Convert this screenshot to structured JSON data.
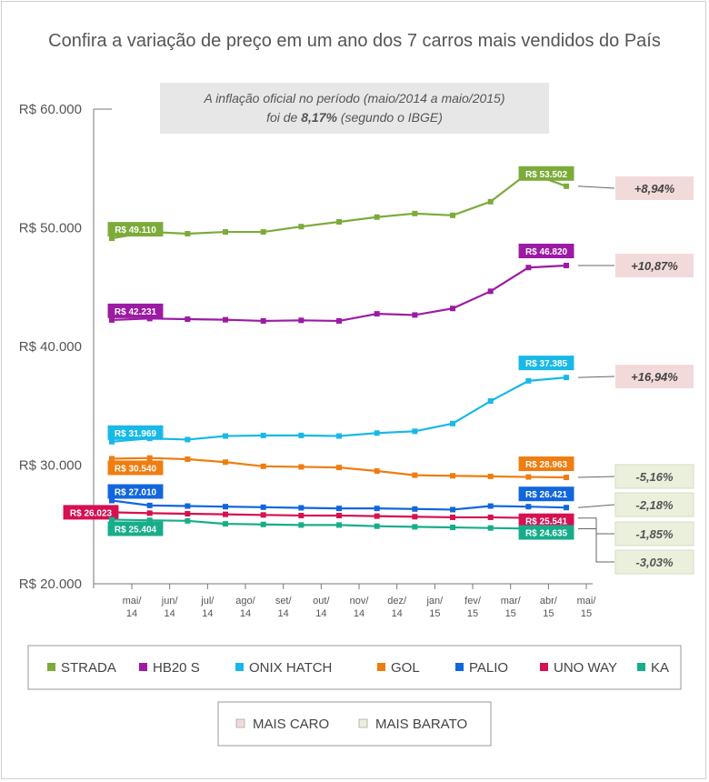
{
  "title": "Confira a variação de preço em um ano dos 7 carros mais vendidos do País",
  "note": {
    "line1": "A inflação oficial no período (maio/2014 a maio/2015)",
    "line2_pre": "foi de ",
    "line2_bold": "8,17%",
    "line2_post": " (segundo o IBGE)"
  },
  "colors": {
    "mais_caro": "#f3dada",
    "mais_barato": "#eaf0dc",
    "axis": "#777777"
  },
  "chart_data": {
    "type": "line",
    "title": "Confira a variação de preço em um ano dos 7 carros mais vendidos do País",
    "x": [
      "mai/14",
      "jun/14",
      "jul/14",
      "ago/14",
      "set/14",
      "out/14",
      "nov/14",
      "dez/14",
      "jan/15",
      "fev/15",
      "mar/15",
      "abr/15",
      "mai/15"
    ],
    "x_labels": [
      [
        "mai/",
        "14"
      ],
      [
        "jun/",
        "14"
      ],
      [
        "jul/",
        "14"
      ],
      [
        "ago/",
        "14"
      ],
      [
        "set/",
        "14"
      ],
      [
        "out/",
        "14"
      ],
      [
        "nov/",
        "14"
      ],
      [
        "dez/",
        "14"
      ],
      [
        "jan/",
        "15"
      ],
      [
        "fev/",
        "15"
      ],
      [
        "mar/",
        "15"
      ],
      [
        "abr/",
        "15"
      ],
      [
        "mai/",
        "15"
      ]
    ],
    "ylim": [
      20000,
      60000
    ],
    "yticks": [
      20000,
      30000,
      40000,
      50000,
      60000
    ],
    "ytick_labels": [
      "R$ 20.000",
      "R$ 30.000",
      "R$ 40.000",
      "R$ 50.000",
      "R$ 60.000"
    ],
    "series": [
      {
        "name": "STRADA",
        "color": "#7cab3a",
        "values": [
          49110,
          49650,
          49500,
          49650,
          49650,
          50100,
          50500,
          50900,
          51200,
          51050,
          52200,
          54650,
          53502
        ],
        "start_label": "R$ 49.110",
        "end_label": "R$ 53.502",
        "change": "+8,94%",
        "category": "mais_caro"
      },
      {
        "name": "HB20 S",
        "color": "#9c1aa4",
        "values": [
          42231,
          42350,
          42300,
          42250,
          42150,
          42200,
          42150,
          42750,
          42650,
          43200,
          44650,
          46650,
          46820
        ],
        "start_label": "R$ 42.231",
        "end_label": "R$ 46.820",
        "change": "+10,87%",
        "category": "mais_caro"
      },
      {
        "name": "ONIX HATCH",
        "color": "#18b9e8",
        "values": [
          31969,
          32250,
          32150,
          32450,
          32500,
          32500,
          32450,
          32700,
          32850,
          33500,
          35400,
          37100,
          37385
        ],
        "start_label": "R$ 31.969",
        "end_label": "R$ 37.385",
        "change": "+16,94%",
        "category": "mais_caro"
      },
      {
        "name": "GOL",
        "color": "#ef7d10",
        "values": [
          30540,
          30600,
          30500,
          30250,
          29900,
          29850,
          29800,
          29500,
          29150,
          29100,
          29050,
          29000,
          28963
        ],
        "start_label": "R$ 30.540",
        "end_label": "R$ 28.963",
        "change": "-5,16%",
        "category": "mais_barato"
      },
      {
        "name": "PALIO",
        "color": "#1166dd",
        "values": [
          27010,
          26600,
          26550,
          26500,
          26450,
          26400,
          26350,
          26350,
          26300,
          26250,
          26550,
          26500,
          26421
        ],
        "start_label": "R$ 27.010",
        "end_label": "R$ 26.421",
        "change": "-2,18%",
        "category": "mais_barato"
      },
      {
        "name": "UNO WAY",
        "color": "#d61051",
        "values": [
          26023,
          25950,
          25900,
          25850,
          25800,
          25750,
          25750,
          25700,
          25650,
          25600,
          25600,
          25550,
          25541
        ],
        "start_label": "R$ 26.023",
        "end_label": "R$ 25.541",
        "change": "-1,85%",
        "category": "mais_barato"
      },
      {
        "name": "KA",
        "color": "#17ad8a",
        "values": [
          25404,
          25350,
          25300,
          25050,
          25000,
          24950,
          24950,
          24850,
          24800,
          24750,
          24700,
          24650,
          24635
        ],
        "start_label": "R$ 25.404",
        "end_label": "R$ 24.635",
        "change": "-3,03%",
        "category": "mais_barato"
      }
    ]
  },
  "legend": {
    "items": [
      {
        "name": "STRADA",
        "color": "#7cab3a"
      },
      {
        "name": "HB20 S",
        "color": "#9c1aa4"
      },
      {
        "name": "ONIX HATCH",
        "color": "#18b9e8"
      },
      {
        "name": "GOL",
        "color": "#ef7d10"
      },
      {
        "name": "PALIO",
        "color": "#1166dd"
      },
      {
        "name": "UNO WAY",
        "color": "#d61051"
      },
      {
        "name": "KA",
        "color": "#17ad8a"
      }
    ],
    "categories": [
      {
        "label": "MAIS CARO",
        "color": "#f3dada"
      },
      {
        "label": "MAIS BARATO",
        "color": "#eaf0dc"
      }
    ]
  }
}
